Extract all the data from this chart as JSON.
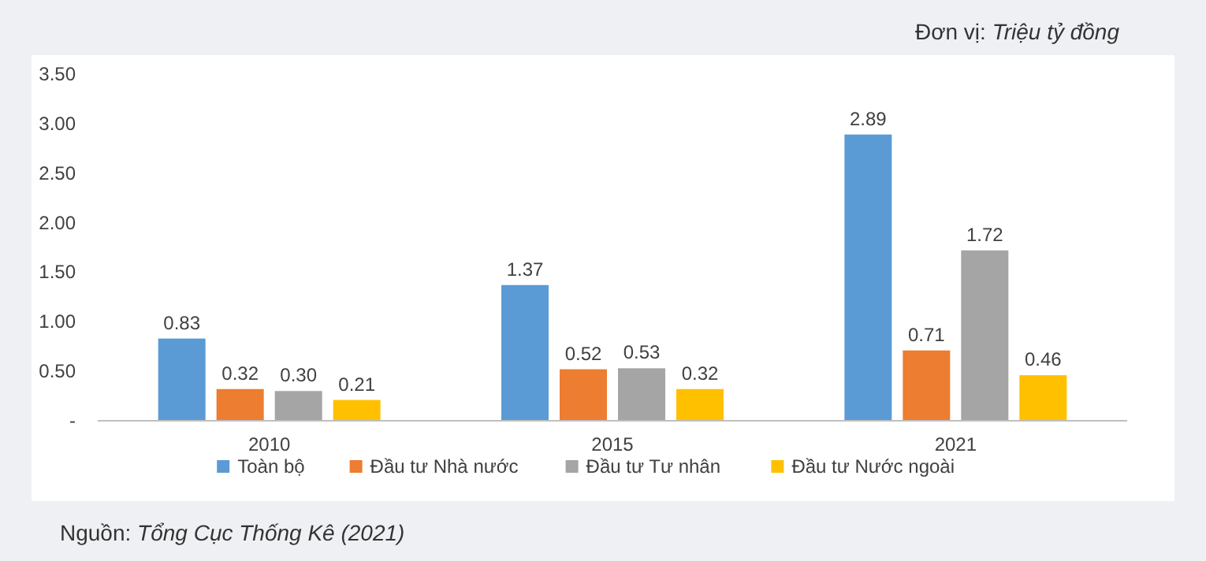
{
  "chart_data": {
    "type": "bar",
    "categories": [
      "2010",
      "2015",
      "2021"
    ],
    "series": [
      {
        "name": "Toàn bộ",
        "color": "#5b9bd5",
        "values": [
          0.83,
          1.37,
          2.89
        ],
        "value_labels": [
          "0.83",
          "1.37",
          "2.89"
        ]
      },
      {
        "name": "Đầu tư Nhà nước",
        "color": "#ed7d31",
        "values": [
          0.32,
          0.52,
          0.71
        ],
        "value_labels": [
          "0.32",
          "0.52",
          "0.71"
        ]
      },
      {
        "name": "Đầu tư Tư nhân",
        "color": "#a5a5a5",
        "values": [
          0.3,
          0.53,
          1.72
        ],
        "value_labels": [
          "0.30",
          "0.53",
          "1.72"
        ]
      },
      {
        "name": "Đầu tư Nước ngoài",
        "color": "#ffc000",
        "values": [
          0.21,
          0.32,
          0.46
        ],
        "value_labels": [
          "0.21",
          "0.32",
          "0.46"
        ]
      }
    ],
    "ylim": [
      0,
      3.5
    ],
    "yticks": [
      {
        "value": 0,
        "label": "-"
      },
      {
        "value": 0.5,
        "label": "0.50"
      },
      {
        "value": 1,
        "label": "1.00"
      },
      {
        "value": 1.5,
        "label": "1.50"
      },
      {
        "value": 2,
        "label": "2.00"
      },
      {
        "value": 2.5,
        "label": "2.50"
      },
      {
        "value": 3,
        "label": "3.00"
      },
      {
        "value": 3.5,
        "label": "3.50"
      }
    ],
    "grid": false,
    "legend": "bottom",
    "annotations": [
      "Đơn vị: Triệu tỷ đồng",
      "Nguồn: Tổng Cục Thống Kê (2021)"
    ]
  }
}
